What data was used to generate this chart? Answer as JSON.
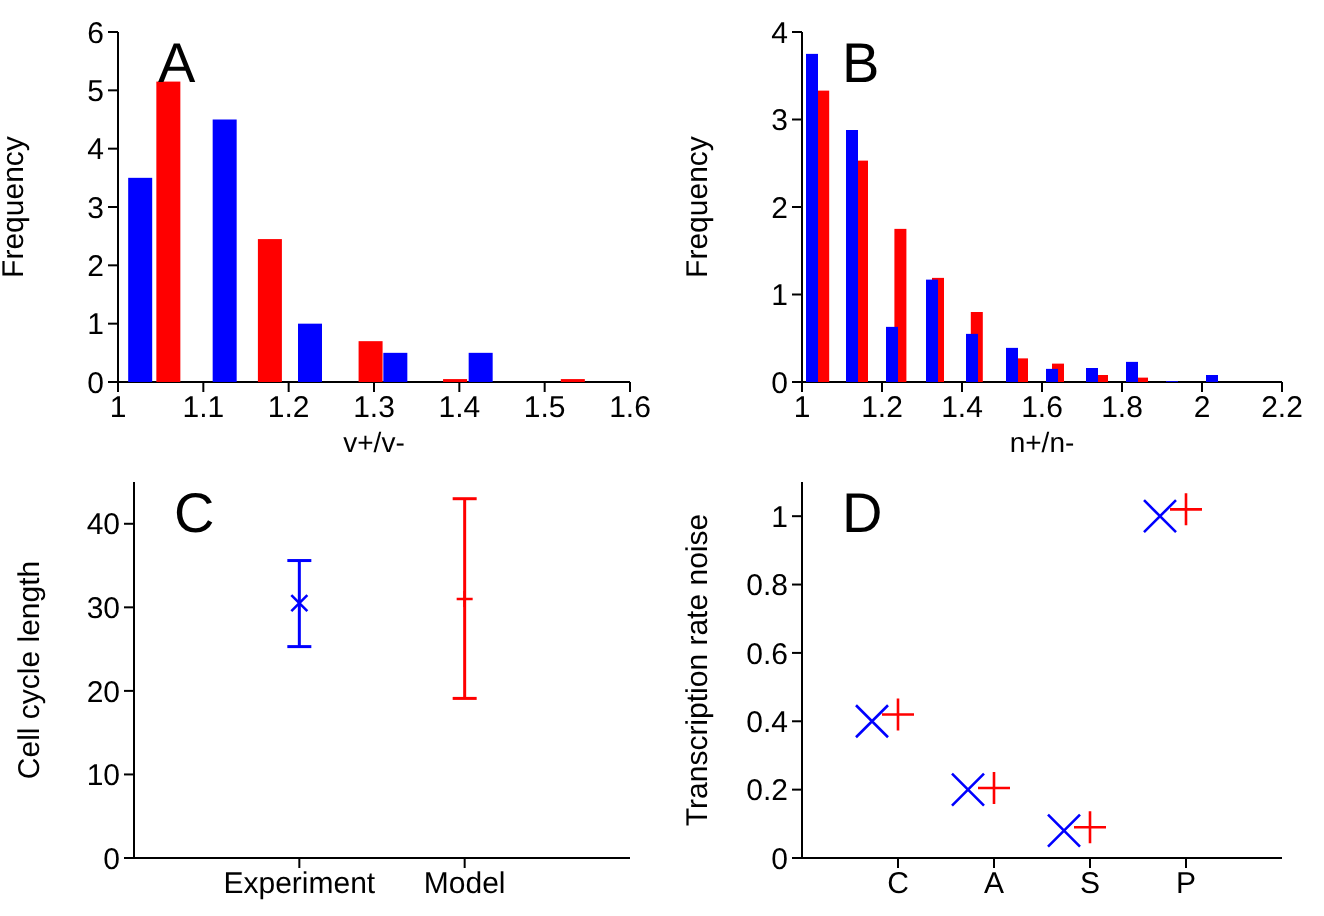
{
  "chart_data": [
    {
      "type": "bar",
      "annotations": [
        "A"
      ],
      "xlabel": "v+/v-",
      "ylabel": "Frequency",
      "xlim": [
        1,
        1.6
      ],
      "xticks": [
        1,
        1.1,
        1.2,
        1.3,
        1.4,
        1.5,
        1.6
      ],
      "ylim": [
        0,
        6
      ],
      "yticks": [
        0,
        1,
        2,
        3,
        4,
        5,
        6
      ],
      "series": [
        {
          "color": "#ff0000",
          "x": [
            1.059,
            1.178,
            1.296,
            1.395,
            1.533
          ],
          "values": [
            5.15,
            2.45,
            0.7,
            0.05,
            0.05
          ]
        },
        {
          "color": "#0000ff",
          "x": [
            1.026,
            1.125,
            1.225,
            1.325,
            1.425
          ],
          "values": [
            3.5,
            4.5,
            1.0,
            0.5,
            0.5
          ]
        }
      ]
    },
    {
      "type": "bar",
      "annotations": [
        "B"
      ],
      "xlabel": "n+/n-",
      "ylabel": "Frequency",
      "xlim": [
        1,
        2.2
      ],
      "xticks": [
        1,
        1.2,
        1.4,
        1.6,
        1.8,
        2,
        2.2
      ],
      "ylim": [
        0,
        4
      ],
      "yticks": [
        0,
        1,
        2,
        3,
        4
      ],
      "series": [
        {
          "color": "#ff0000",
          "x": [
            1.053,
            1.15,
            1.246,
            1.34,
            1.437,
            1.55,
            1.64,
            1.75,
            1.85
          ],
          "values": [
            3.33,
            2.53,
            1.75,
            1.19,
            0.8,
            0.27,
            0.21,
            0.08,
            0.05
          ]
        },
        {
          "color": "#0000ff",
          "x": [
            1.025,
            1.125,
            1.225,
            1.325,
            1.425,
            1.525,
            1.625,
            1.725,
            1.825,
            1.925,
            2.025
          ],
          "values": [
            3.75,
            2.88,
            0.63,
            1.17,
            0.55,
            0.39,
            0.15,
            0.16,
            0.23,
            0.01,
            0.08
          ]
        }
      ]
    },
    {
      "type": "scatter",
      "annotations": [
        "C"
      ],
      "ylabel": "Cell cycle length",
      "categories": [
        "Experiment",
        "Model"
      ],
      "ylim": [
        0,
        45
      ],
      "yticks": [
        0,
        10,
        20,
        30,
        40
      ],
      "series": [
        {
          "color": "#0000ff",
          "marker": "x",
          "values": [
            30.5,
            null
          ],
          "errors": [
            [
              25.3,
              35.6
            ],
            null
          ]
        },
        {
          "color": "#ff0000",
          "marker": "cross",
          "values": [
            null,
            31
          ],
          "errors": [
            null,
            [
              19.1,
              43
            ]
          ]
        }
      ]
    },
    {
      "type": "scatter",
      "annotations": [
        "D"
      ],
      "ylabel": "Transcription rate noise",
      "categories": [
        "C",
        "A",
        "S",
        "P"
      ],
      "ylim": [
        0,
        1.1
      ],
      "yticks": [
        0,
        0.2,
        0.4,
        0.6,
        0.8,
        1
      ],
      "series": [
        {
          "color": "#0000ff",
          "marker": "x",
          "values": [
            0.4,
            0.2,
            0.08,
            1.0
          ]
        },
        {
          "color": "#ff0000",
          "marker": "cross",
          "values": [
            0.42,
            0.205,
            0.09,
            1.02
          ]
        }
      ]
    }
  ]
}
